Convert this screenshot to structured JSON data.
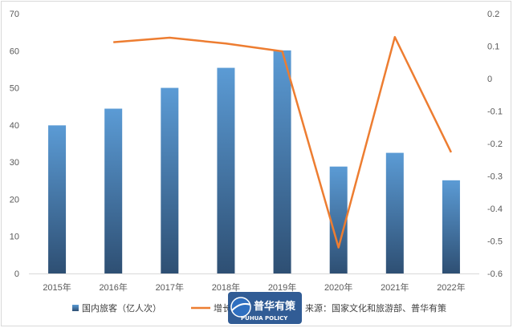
{
  "chart_data": {
    "type": "bar+line",
    "categories": [
      "2015年",
      "2016年",
      "2017年",
      "2018年",
      "2019年",
      "2020年",
      "2021年",
      "2022年"
    ],
    "series": [
      {
        "name": "国内旅客（亿人次）",
        "type": "bar",
        "axis": "left",
        "values": [
          39.9,
          44.4,
          50.0,
          55.4,
          60.1,
          28.8,
          32.5,
          25.1
        ]
      },
      {
        "name": "增长",
        "type": "line",
        "axis": "right",
        "values": [
          null,
          0.112,
          0.126,
          0.108,
          0.084,
          -0.52,
          0.128,
          -0.227
        ]
      }
    ],
    "y_left": {
      "min": 0,
      "max": 70,
      "ticks": [
        0,
        10,
        20,
        30,
        40,
        50,
        60,
        70
      ]
    },
    "y_right": {
      "min": -0.6,
      "max": 0.2,
      "ticks": [
        "-0.6",
        "-0.5",
        "-0.4",
        "-0.3",
        "-0.2",
        "-0.1",
        "0",
        "0.1",
        "0.2"
      ]
    },
    "legend_position": "bottom",
    "source_note": "来源：国家文化和旅游部、普华有策",
    "colors": {
      "bar_top": "#5b9bd5",
      "bar_bottom": "#2e4f73",
      "line": "#ed7d31"
    }
  },
  "watermark": {
    "cn": "普华有策",
    "en": "PUHUA POLICY"
  }
}
